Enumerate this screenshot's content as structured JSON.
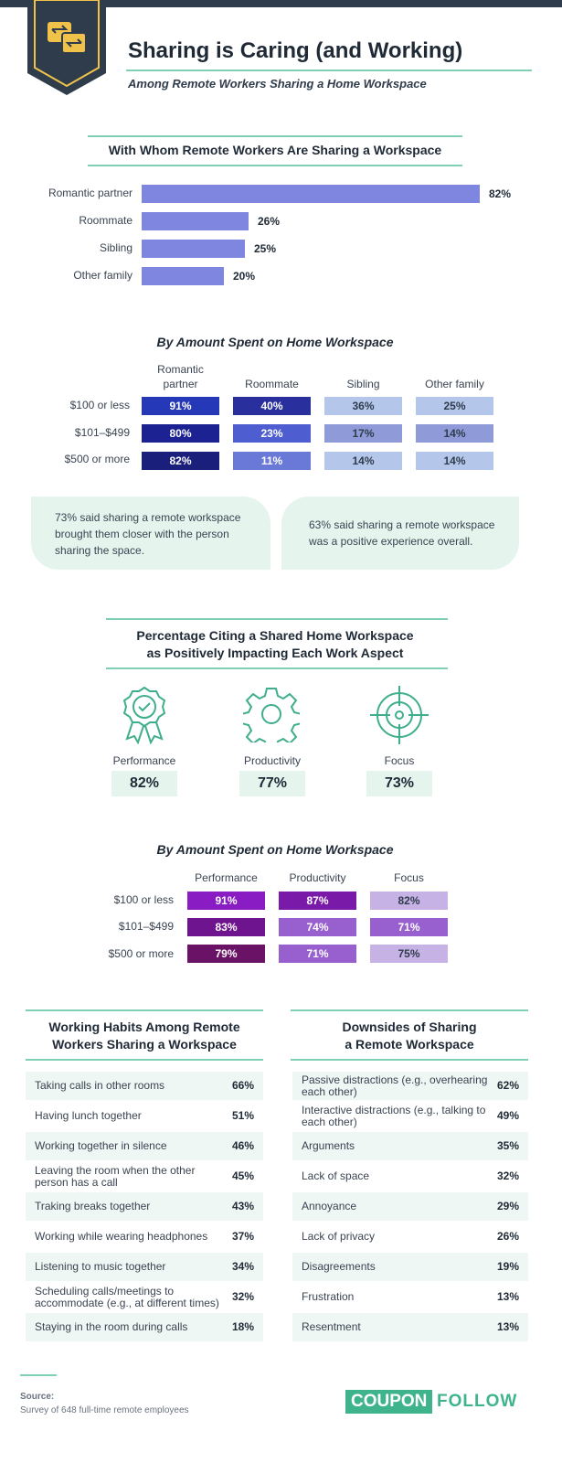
{
  "title": "Sharing is Caring (and Working)",
  "subtitle": "Among Remote Workers Sharing a Home Workspace",
  "colors": {
    "accent": "#7fcfb6",
    "bar": "#7f86e0",
    "dark": "#2f3c4c",
    "badge_gold": "#f0c24a",
    "mint": "#e6f4ee"
  },
  "chart_data": [
    {
      "type": "bar",
      "title": "With Whom Remote Workers Are Sharing a Workspace",
      "categories": [
        "Romantic partner",
        "Roommate",
        "Sibling",
        "Other family"
      ],
      "values": [
        82,
        26,
        25,
        20
      ],
      "value_labels": [
        "82%",
        "26%",
        "25%",
        "20%"
      ],
      "xlim": [
        0,
        82
      ]
    },
    {
      "type": "table",
      "title": "By Amount Spent on Home Workspace",
      "columns": [
        "Romantic partner",
        "Roommate",
        "Sibling",
        "Other family"
      ],
      "rows": [
        {
          "label": "$100 or less",
          "values": [
            91,
            40,
            36,
            25
          ],
          "labels": [
            "91%",
            "40%",
            "36%",
            "25%"
          ]
        },
        {
          "label": "$101–$499",
          "values": [
            80,
            23,
            17,
            14
          ],
          "labels": [
            "80%",
            "23%",
            "17%",
            "14%"
          ]
        },
        {
          "label": "$500 or more",
          "values": [
            82,
            11,
            14,
            14
          ],
          "labels": [
            "82%",
            "11%",
            "14%",
            "14%"
          ]
        }
      ]
    },
    {
      "type": "table",
      "title": "Percentage Citing a Shared Home Workspace as Positively Impacting Each Work Aspect",
      "columns": [
        "Performance",
        "Productivity",
        "Focus"
      ],
      "values": [
        82,
        77,
        73
      ],
      "labels": [
        "82%",
        "77%",
        "73%"
      ]
    },
    {
      "type": "table",
      "title": "By Amount Spent on Home Workspace",
      "columns": [
        "Performance",
        "Productivity",
        "Focus"
      ],
      "rows": [
        {
          "label": "$100 or less",
          "values": [
            91,
            87,
            82
          ],
          "labels": [
            "91%",
            "87%",
            "82%"
          ]
        },
        {
          "label": "$101–$499",
          "values": [
            83,
            74,
            71
          ],
          "labels": [
            "83%",
            "74%",
            "71%"
          ]
        },
        {
          "label": "$500 or more",
          "values": [
            79,
            71,
            75
          ],
          "labels": [
            "79%",
            "71%",
            "75%"
          ]
        }
      ]
    },
    {
      "type": "table",
      "title": "Working Habits Among Remote Workers Sharing a Workspace",
      "items": [
        {
          "label": "Taking calls in other rooms",
          "value": "66%"
        },
        {
          "label": "Having lunch together",
          "value": "51%"
        },
        {
          "label": "Working together in silence",
          "value": "46%"
        },
        {
          "label": "Leaving the room when the other person has a call",
          "value": "45%"
        },
        {
          "label": "Traking breaks together",
          "value": "43%"
        },
        {
          "label": "Working while wearing headphones",
          "value": "37%"
        },
        {
          "label": "Listening to music together",
          "value": "34%"
        },
        {
          "label": "Scheduling calls/meetings to accommodate (e.g., at different times)",
          "value": "32%"
        },
        {
          "label": "Staying in the room during calls",
          "value": "18%"
        }
      ]
    },
    {
      "type": "table",
      "title": "Downsides of Sharing a Remote Workspace",
      "items": [
        {
          "label": "Passive distractions (e.g., overhearing each other)",
          "value": "62%"
        },
        {
          "label": "Interactive distractions (e.g., talking to each other)",
          "value": "49%"
        },
        {
          "label": "Arguments",
          "value": "35%"
        },
        {
          "label": "Lack of space",
          "value": "32%"
        },
        {
          "label": "Annoyance",
          "value": "29%"
        },
        {
          "label": "Lack of privacy",
          "value": "26%"
        },
        {
          "label": "Disagreements",
          "value": "19%"
        },
        {
          "label": "Frustration",
          "value": "13%"
        },
        {
          "label": "Resentment",
          "value": "13%"
        }
      ]
    }
  ],
  "sections": {
    "who": {
      "title": "With Whom Remote Workers Are Sharing a Workspace"
    },
    "spend1": {
      "title": "By Amount Spent on Home Workspace",
      "col_line1": [
        "Romantic",
        "Roommate",
        "Sibling",
        "Other family"
      ],
      "col_line2": [
        "partner",
        "",
        "",
        ""
      ]
    },
    "callouts": [
      "73% said sharing a remote workspace brought them closer with the person sharing the space.",
      "63% said sharing a remote workspace was a positive experience overall."
    ],
    "impact": {
      "title_line1": "Percentage Citing a Shared Home Workspace",
      "title_line2": "as Positively Impacting Each Work Aspect",
      "icons": [
        "ribbon-icon",
        "gear-icon",
        "target-icon"
      ]
    },
    "spend2": {
      "title": "By Amount Spent on Home Workspace"
    },
    "habits": {
      "title_line1": "Working Habits Among Remote",
      "title_line2": "Workers Sharing a Workspace"
    },
    "downsides": {
      "title_line1": "Downsides of Sharing",
      "title_line2": "a Remote Workspace"
    }
  },
  "footer": {
    "source_label": "Source:",
    "source_text": "Survey of 648 full-time remote employees",
    "logo_left": "COUPON",
    "logo_right": "FOLLOW"
  }
}
